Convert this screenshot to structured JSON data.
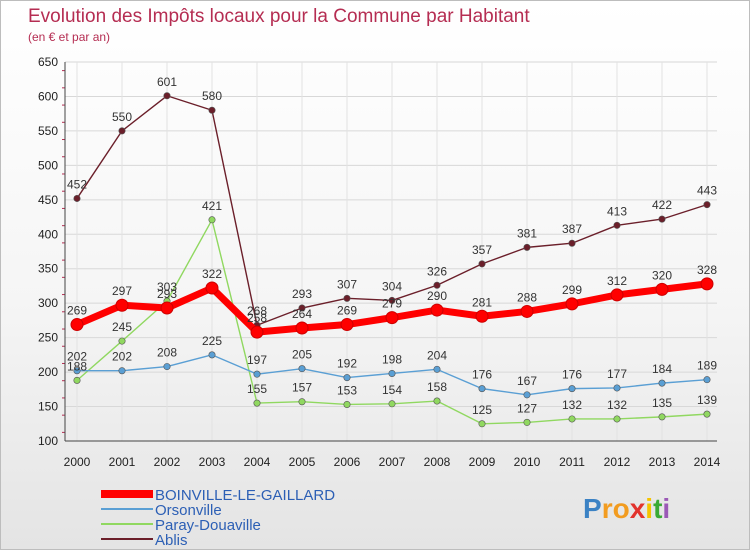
{
  "chart_data": {
    "type": "line",
    "title": "Evolution des Impôts locaux pour la Commune par Habitant",
    "subtitle": "(en € et par an)",
    "xlabel": "",
    "ylabel": "",
    "categories": [
      "2000",
      "2001",
      "2002",
      "2003",
      "2004",
      "2005",
      "2006",
      "2007",
      "2008",
      "2009",
      "2010",
      "2011",
      "2012",
      "2013",
      "2014"
    ],
    "ylim": [
      100,
      650
    ],
    "yticks": [
      100,
      150,
      200,
      250,
      300,
      350,
      400,
      450,
      500,
      550,
      600,
      650
    ],
    "grid": true,
    "legend_position": "bottom-left",
    "series": [
      {
        "name": "Ablis",
        "color": "#6b1f2a",
        "values": [
          452,
          550,
          601,
          580,
          268,
          293,
          307,
          304,
          326,
          357,
          381,
          387,
          413,
          422,
          443
        ]
      },
      {
        "name": "Paray-Douaville",
        "color": "#90d860",
        "values": [
          188,
          245,
          303,
          421,
          155,
          157,
          153,
          154,
          158,
          125,
          127,
          132,
          132,
          135,
          139
        ]
      },
      {
        "name": "Orsonville",
        "color": "#5a9fd4",
        "values": [
          202,
          202,
          208,
          225,
          197,
          205,
          192,
          198,
          204,
          176,
          167,
          176,
          177,
          184,
          189
        ]
      },
      {
        "name": "BOINVILLE-LE-GAILLARD",
        "color": "#ff0000",
        "values": [
          269,
          297,
          293,
          322,
          258,
          264,
          269,
          279,
          290,
          281,
          288,
          299,
          312,
          320,
          328
        ]
      }
    ],
    "legend_order": [
      "BOINVILLE-LE-GAILLARD",
      "Orsonville",
      "Paray-Douaville",
      "Ablis"
    ]
  },
  "brand": {
    "letters": [
      "P",
      "r",
      "o",
      "x",
      "i",
      "t",
      "i"
    ],
    "colors": [
      "#3b82c4",
      "#f29c20",
      "#f29c20",
      "#e2332d",
      "#f5c400",
      "#3aaa35",
      "#9b59b6"
    ]
  }
}
